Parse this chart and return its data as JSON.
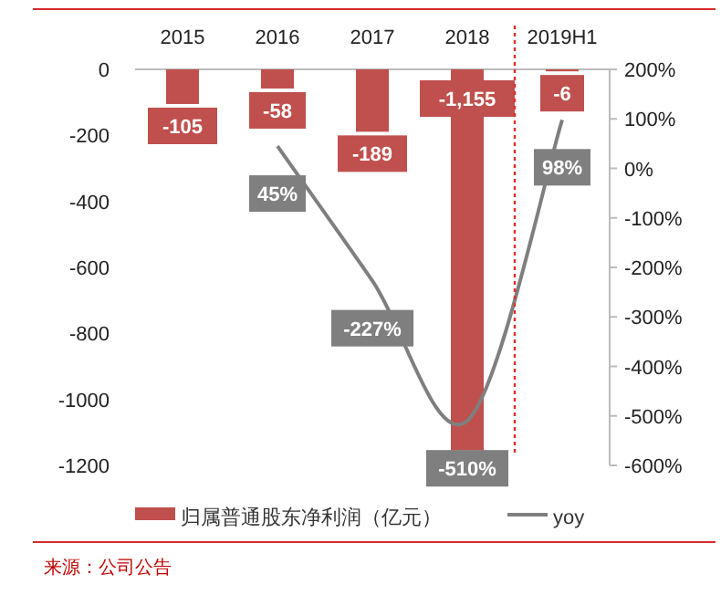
{
  "chart_data": {
    "type": "bar",
    "categories": [
      "2015",
      "2016",
      "2017",
      "2018",
      "2019H1"
    ],
    "ylim": [
      -1200,
      0
    ],
    "yticks": [
      0,
      -200,
      -400,
      -600,
      -800,
      -1000,
      -1200
    ],
    "y2lim": [
      -600,
      200
    ],
    "y2ticks": [
      {
        "value": 200,
        "label": "200%"
      },
      {
        "value": 100,
        "label": "100%"
      },
      {
        "value": 0,
        "label": "0%"
      },
      {
        "value": -100,
        "label": "-100%"
      },
      {
        "value": -200,
        "label": "-200%"
      },
      {
        "value": -300,
        "label": "-300%"
      },
      {
        "value": -400,
        "label": "-400%"
      },
      {
        "value": -500,
        "label": "-500%"
      },
      {
        "value": -600,
        "label": "-600%"
      }
    ],
    "series": [
      {
        "name": "归属普通股东净利润（亿元）",
        "color": "#c0504d",
        "values": [
          -105,
          -58,
          -189,
          -1155,
          -6
        ],
        "value_labels": [
          "-105",
          "-58",
          "-189",
          "-1,155",
          "-6"
        ]
      },
      {
        "name": "yoy",
        "type": "line",
        "axis": "y2",
        "color": "#7f7f7f",
        "values": [
          null,
          45,
          -227,
          -510,
          98
        ],
        "value_labels": [
          null,
          "45%",
          "-227%",
          "-510%",
          "98%"
        ]
      }
    ],
    "ref_lines": [
      {
        "axis": "x",
        "value": "2019H1",
        "color": "#e0302a",
        "line_style": "dotted"
      }
    ],
    "legend": "bottom",
    "grid": false,
    "marker": "none",
    "annotations": [
      "来源：公司公告"
    ]
  }
}
